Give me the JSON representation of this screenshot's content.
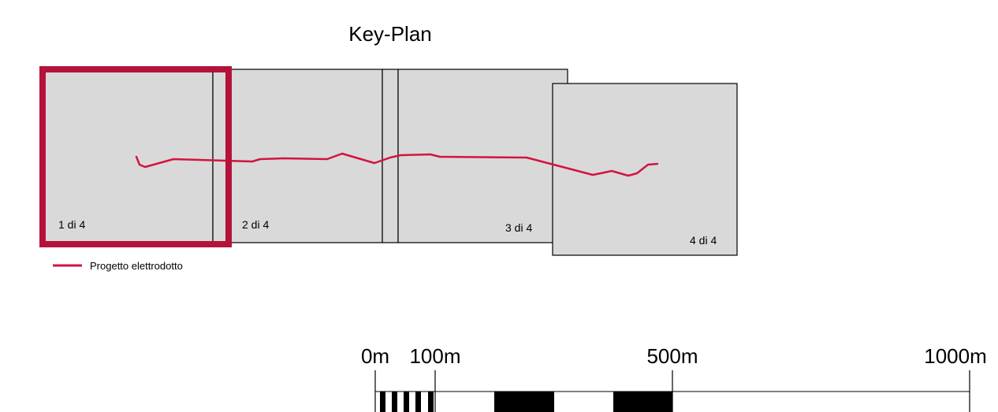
{
  "title": "Key-Plan",
  "sheets": [
    {
      "label": "1 di 4",
      "selected": true
    },
    {
      "label": "2 di 4",
      "selected": false
    },
    {
      "label": "3 di 4",
      "selected": false
    },
    {
      "label": "4 di 4",
      "selected": false
    }
  ],
  "legend": {
    "label": "Progetto elettrodotto"
  },
  "scale_bar": {
    "labels": [
      "0m",
      "100m",
      "500m",
      "1000m"
    ],
    "max_value_m": 1000
  },
  "colors": {
    "route": "#d3143e",
    "selected_frame": "#b4123a",
    "sheet_fill": "#d9d9d9",
    "sheet_stroke": "#000000",
    "scale_fill": "#000000"
  }
}
